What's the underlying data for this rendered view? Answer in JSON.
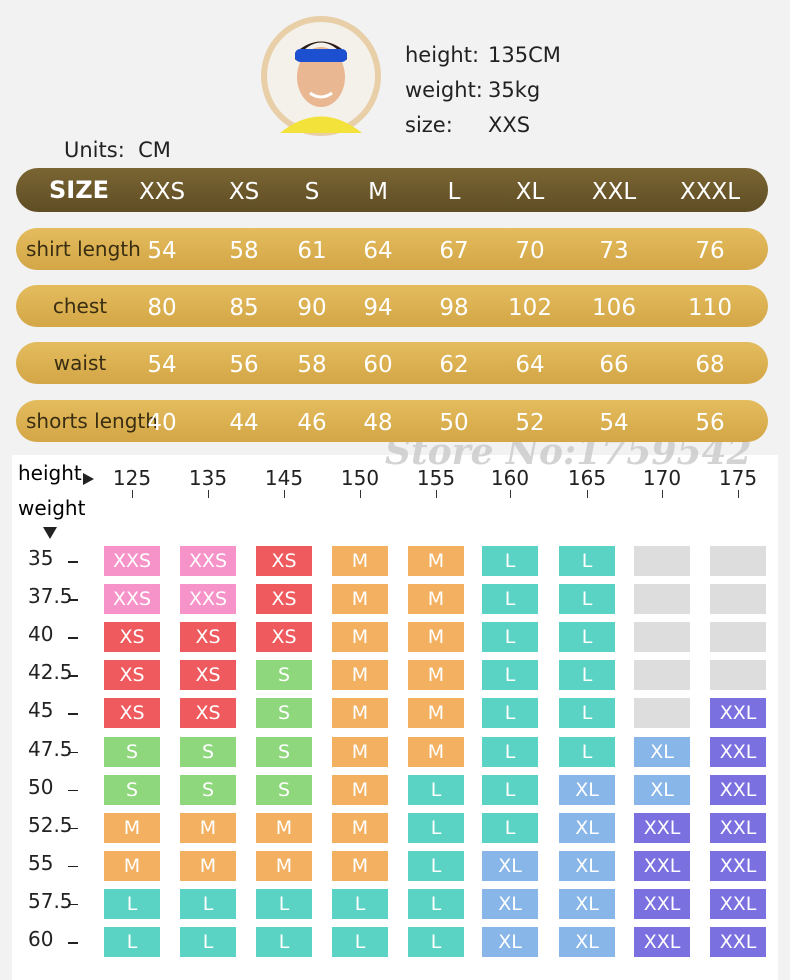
{
  "model": {
    "labels": [
      "height:",
      "weight:",
      "size:"
    ],
    "values": [
      "135CM",
      "35kg",
      "XXS"
    ]
  },
  "units": {
    "label": "Units:",
    "value": "CM"
  },
  "size_table": {
    "header": "SIZE",
    "sizes": [
      "XXS",
      "XS",
      "S",
      "M",
      "L",
      "XL",
      "XXL",
      "XXXL"
    ],
    "rows": [
      {
        "name": "shirt length",
        "values": [
          54,
          58,
          61,
          64,
          67,
          70,
          73,
          76
        ]
      },
      {
        "name": "chest",
        "values": [
          80,
          85,
          90,
          94,
          98,
          102,
          106,
          110
        ]
      },
      {
        "name": "waist",
        "values": [
          54,
          56,
          58,
          60,
          62,
          64,
          66,
          68
        ]
      },
      {
        "name": "shorts length",
        "values": [
          40,
          44,
          46,
          48,
          50,
          52,
          54,
          56
        ]
      }
    ]
  },
  "watermark": "Store No:1759542",
  "grid": {
    "height_label": "height",
    "weight_label": "weight",
    "heights": [
      125,
      135,
      145,
      150,
      155,
      160,
      165,
      170,
      175
    ],
    "weights": [
      "35",
      "37.5",
      "40",
      "42.5",
      "45",
      "47.5",
      "50",
      "52.5",
      "55",
      "57.5",
      "60"
    ],
    "colors": {
      "XXS": "#f693c8",
      "XS": "#ee5a5e",
      "S": "#8fd77c",
      "M": "#f3b060",
      "L": "#5ad3c4",
      "XL": "#88b6e8",
      "XXL": "#7a70e0",
      "none": "#dddddd"
    },
    "cells": [
      [
        "XXS",
        "XXS",
        "XS",
        "M",
        "M",
        "L",
        "L",
        null,
        null
      ],
      [
        "XXS",
        "XXS",
        "XS",
        "M",
        "M",
        "L",
        "L",
        null,
        null
      ],
      [
        "XS",
        "XS",
        "XS",
        "M",
        "M",
        "L",
        "L",
        null,
        null
      ],
      [
        "XS",
        "XS",
        "S",
        "M",
        "M",
        "L",
        "L",
        null,
        null
      ],
      [
        "XS",
        "XS",
        "S",
        "M",
        "M",
        "L",
        "L",
        null,
        "XXL"
      ],
      [
        "S",
        "S",
        "S",
        "M",
        "M",
        "L",
        "L",
        "XL",
        "XXL"
      ],
      [
        "S",
        "S",
        "S",
        "M",
        "L",
        "L",
        "XL",
        "XL",
        "XXL"
      ],
      [
        "M",
        "M",
        "M",
        "M",
        "L",
        "L",
        "XL",
        "XXL",
        "XXL"
      ],
      [
        "M",
        "M",
        "M",
        "M",
        "L",
        "XL",
        "XL",
        "XXL",
        "XXL"
      ],
      [
        "L",
        "L",
        "L",
        "L",
        "L",
        "XL",
        "XL",
        "XXL",
        "XXL"
      ],
      [
        "L",
        "L",
        "L",
        "L",
        "L",
        "XL",
        "XL",
        "XXL",
        "XXL"
      ]
    ]
  }
}
